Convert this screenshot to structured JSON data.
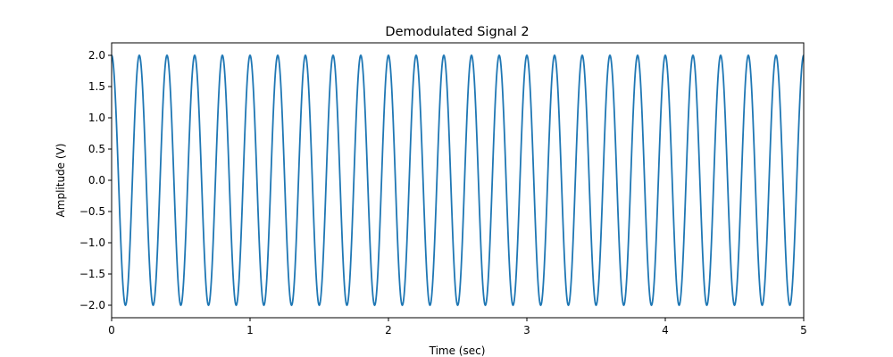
{
  "chart_data": {
    "type": "line",
    "title": "Demodulated Signal 2",
    "xlabel": "Time (sec)",
    "ylabel": "Amplitude (V)",
    "xlim": [
      0,
      5
    ],
    "ylim": [
      -2.2,
      2.2
    ],
    "xticks": [
      0,
      1,
      2,
      3,
      4,
      5
    ],
    "xtick_labels": [
      "0",
      "1",
      "2",
      "3",
      "4",
      "5"
    ],
    "yticks": [
      2.0,
      1.5,
      1.0,
      0.5,
      0.0,
      -0.5,
      -1.0,
      -1.5,
      -2.0
    ],
    "ytick_labels": [
      "2.0",
      "1.5",
      "1.0",
      "0.5",
      "0.0",
      "−0.5",
      "−1.0",
      "−1.5",
      "−2.0"
    ],
    "grid": false,
    "series": [
      {
        "function": "cosine",
        "amplitude": 2,
        "frequency_hz": 5,
        "x_start": 0,
        "x_end": 5,
        "color": "#1f77b4"
      }
    ]
  }
}
